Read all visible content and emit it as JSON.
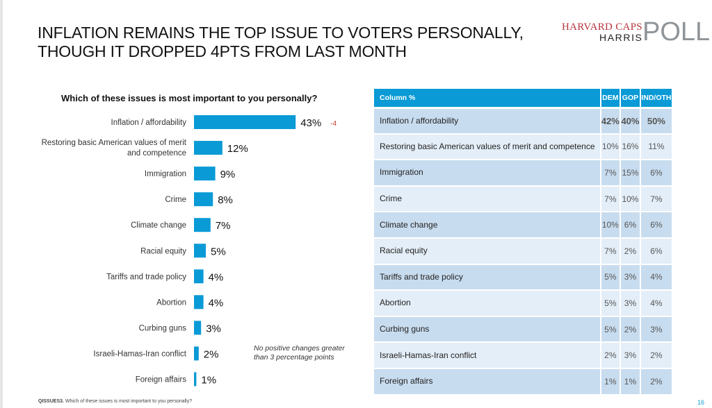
{
  "title_lines": [
    "INFLATION REMAINS THE TOP ISSUE TO VOTERS PERSONALLY,",
    "THOUGH IT DROPPED 4PTS FROM LAST MONTH"
  ],
  "logo": {
    "line1": "HARVARD CAPS",
    "line2": "HARRIS",
    "line3": "POLL"
  },
  "chart_data": {
    "type": "bar",
    "orientation": "horizontal",
    "title": "Which of these issues is most important to you personally?",
    "categories": [
      "Inflation / affordability",
      "Restoring basic American values of merit and competence",
      "Immigration",
      "Crime",
      "Climate change",
      "Racial equity",
      "Tariffs and trade policy",
      "Abortion",
      "Curbing guns",
      "Israeli-Hamas-Iran conflict",
      "Foreign affairs"
    ],
    "values": [
      43,
      12,
      9,
      8,
      7,
      5,
      4,
      4,
      3,
      2,
      1
    ],
    "labels": [
      "43%",
      "12%",
      "9%",
      "8%",
      "7%",
      "5%",
      "4%",
      "4%",
      "3%",
      "2%",
      "1%"
    ],
    "change_annotation": {
      "category": "Inflation / affordability",
      "text": "-4",
      "color": "#c0392b"
    },
    "bar_color": "#0a9ad6",
    "note": "No positive changes greater than 3 percentage points"
  },
  "table": {
    "headers": [
      "Column %",
      "DEM",
      "GOP",
      "IND/OTH"
    ],
    "rows": [
      [
        "Inflation / affordability",
        "42%",
        "40%",
        "50%"
      ],
      [
        "Restoring basic American values of merit and competence",
        "10%",
        "16%",
        "11%"
      ],
      [
        "Immigration",
        "7%",
        "15%",
        "6%"
      ],
      [
        "Crime",
        "7%",
        "10%",
        "7%"
      ],
      [
        "Climate change",
        "10%",
        "6%",
        "6%"
      ],
      [
        "Racial equity",
        "7%",
        "2%",
        "6%"
      ],
      [
        "Tariffs and trade policy",
        "5%",
        "3%",
        "4%"
      ],
      [
        "Abortion",
        "5%",
        "3%",
        "4%"
      ],
      [
        "Curbing guns",
        "5%",
        "2%",
        "3%"
      ],
      [
        "Israeli-Hamas-Iran conflict",
        "2%",
        "3%",
        "2%"
      ],
      [
        "Foreign affairs",
        "1%",
        "1%",
        "2%"
      ]
    ],
    "header_color": "#0a9ad6"
  },
  "footer": {
    "code": "QISSUES3.",
    "text": " Which of these issues is most important to you personally?"
  },
  "page_number": "16"
}
